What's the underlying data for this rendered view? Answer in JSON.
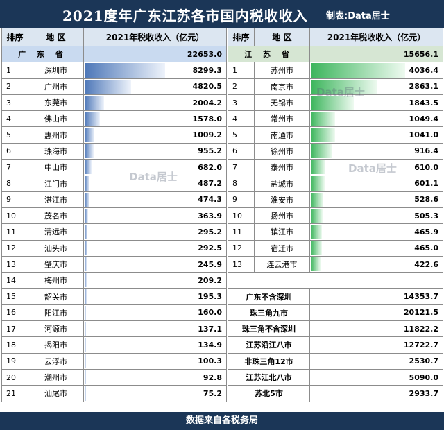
{
  "title": "2021度年广东江苏各市国内税收收入",
  "maker": "制表:Data居士",
  "footer": "数据来自各税务局",
  "watermark": "Data居士",
  "colors": {
    "header_bg": "#1b3657",
    "guangdong_bar": "#4d77b8",
    "jiangsu_bar": "#3cb55c"
  },
  "chart_data": [
    {
      "type": "bar",
      "orientation": "horizontal",
      "columns": [
        "排序",
        "地 区",
        "2021年税收收入（亿元）"
      ],
      "total": {
        "name": "广 东 省",
        "value": "22653.0"
      },
      "max": 8299.3,
      "rows": [
        {
          "rank": "1",
          "name": "深圳市",
          "value": 8299.3,
          "label": "8299.3"
        },
        {
          "rank": "2",
          "name": "广州市",
          "value": 4820.5,
          "label": "4820.5"
        },
        {
          "rank": "3",
          "name": "东莞市",
          "value": 2004.2,
          "label": "2004.2"
        },
        {
          "rank": "4",
          "name": "佛山市",
          "value": 1578.0,
          "label": "1578.0"
        },
        {
          "rank": "5",
          "name": "惠州市",
          "value": 1009.2,
          "label": "1009.2"
        },
        {
          "rank": "6",
          "name": "珠海市",
          "value": 955.2,
          "label": "955.2"
        },
        {
          "rank": "7",
          "name": "中山市",
          "value": 682.0,
          "label": "682.0"
        },
        {
          "rank": "8",
          "name": "江门市",
          "value": 487.2,
          "label": "487.2"
        },
        {
          "rank": "9",
          "name": "湛江市",
          "value": 474.3,
          "label": "474.3"
        },
        {
          "rank": "10",
          "name": "茂名市",
          "value": 363.9,
          "label": "363.9"
        },
        {
          "rank": "11",
          "name": "清远市",
          "value": 295.2,
          "label": "295.2"
        },
        {
          "rank": "12",
          "name": "汕头市",
          "value": 292.5,
          "label": "292.5"
        },
        {
          "rank": "13",
          "name": "肇庆市",
          "value": 245.9,
          "label": "245.9"
        },
        {
          "rank": "14",
          "name": "梅州市",
          "value": 209.2,
          "label": "209.2"
        },
        {
          "rank": "15",
          "name": "韶关市",
          "value": 195.3,
          "label": "195.3"
        },
        {
          "rank": "16",
          "name": "阳江市",
          "value": 160.0,
          "label": "160.0"
        },
        {
          "rank": "17",
          "name": "河源市",
          "value": 137.1,
          "label": "137.1"
        },
        {
          "rank": "18",
          "name": "揭阳市",
          "value": 134.9,
          "label": "134.9"
        },
        {
          "rank": "19",
          "name": "云浮市",
          "value": 100.3,
          "label": "100.3"
        },
        {
          "rank": "20",
          "name": "潮州市",
          "value": 92.8,
          "label": "92.8"
        },
        {
          "rank": "21",
          "name": "汕尾市",
          "value": 75.2,
          "label": "75.2"
        }
      ]
    },
    {
      "type": "bar",
      "orientation": "horizontal",
      "columns": [
        "排序",
        "地 区",
        "2021年税收收入（亿元）"
      ],
      "total": {
        "name": "江 苏 省",
        "value": "15656.1"
      },
      "max": 4036.4,
      "rows": [
        {
          "rank": "1",
          "name": "苏州市",
          "value": 4036.4,
          "label": "4036.4"
        },
        {
          "rank": "2",
          "name": "南京市",
          "value": 2863.1,
          "label": "2863.1"
        },
        {
          "rank": "3",
          "name": "无锡市",
          "value": 1843.5,
          "label": "1843.5"
        },
        {
          "rank": "4",
          "name": "常州市",
          "value": 1049.4,
          "label": "1049.4"
        },
        {
          "rank": "5",
          "name": "南通市",
          "value": 1041.0,
          "label": "1041.0"
        },
        {
          "rank": "6",
          "name": "徐州市",
          "value": 916.4,
          "label": "916.4"
        },
        {
          "rank": "7",
          "name": "泰州市",
          "value": 610.0,
          "label": "610.0"
        },
        {
          "rank": "8",
          "name": "盐城市",
          "value": 601.1,
          "label": "601.1"
        },
        {
          "rank": "9",
          "name": "淮安市",
          "value": 528.6,
          "label": "528.6"
        },
        {
          "rank": "10",
          "name": "扬州市",
          "value": 505.3,
          "label": "505.3"
        },
        {
          "rank": "11",
          "name": "镇江市",
          "value": 465.9,
          "label": "465.9"
        },
        {
          "rank": "12",
          "name": "宿迁市",
          "value": 465.0,
          "label": "465.0"
        },
        {
          "rank": "13",
          "name": "连云港市",
          "value": 422.6,
          "label": "422.6"
        }
      ],
      "summary": [
        {
          "name": "广东不含深圳",
          "value": "14353.7"
        },
        {
          "name": "珠三角九市",
          "value": "20121.5"
        },
        {
          "name": "珠三角不含深圳",
          "value": "11822.2"
        },
        {
          "name": "江苏沿江八市",
          "value": "12722.7"
        },
        {
          "name": "非珠三角12市",
          "value": "2530.7"
        },
        {
          "name": "江苏江北八市",
          "value": "5090.0"
        },
        {
          "name": "苏北5市",
          "value": "2933.7"
        }
      ]
    }
  ]
}
